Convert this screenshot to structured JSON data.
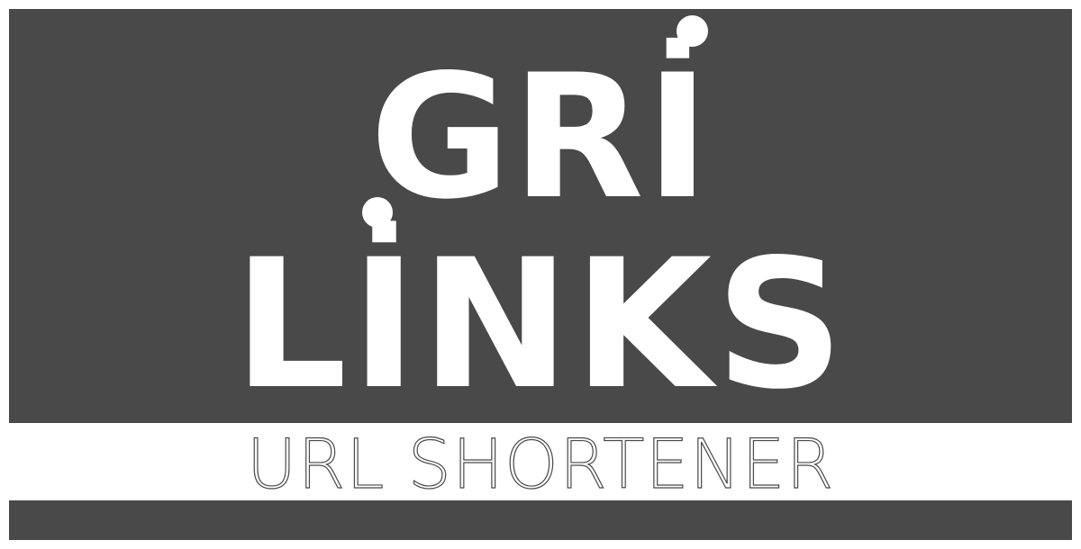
{
  "logo": {
    "line1": "GRİ",
    "line2": "LİNKS",
    "tagline": "URL SHORTENER"
  },
  "colors": {
    "panel": "#494949",
    "background": "#ffffff",
    "logo_text": "#ffffff",
    "tagline_outline": "#4a4a4a"
  }
}
